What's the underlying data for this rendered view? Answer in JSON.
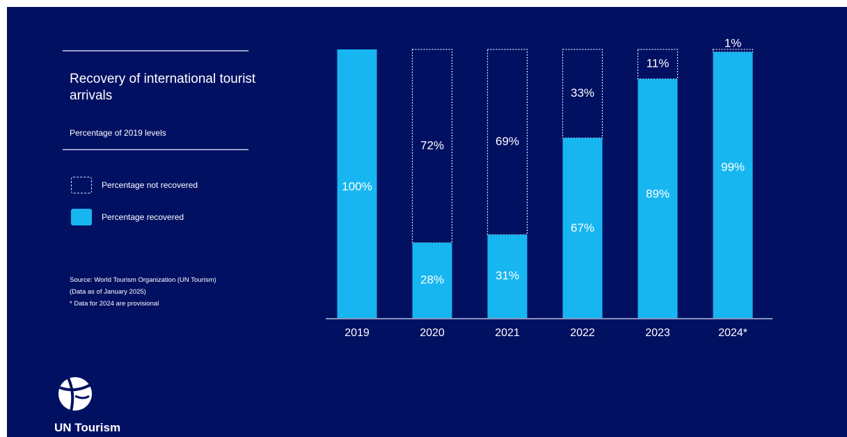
{
  "title": "Recovery of international tourist arrivals",
  "subtitle": "Percentage of 2019 levels",
  "legend": {
    "not_recovered": "Percentage not recovered",
    "recovered": "Percentage recovered"
  },
  "source": {
    "line1": "Source: World Tourism Organization (UN Tourism)",
    "line2": "(Data as of January 2025)",
    "line3": "* Data for 2024 are provisional"
  },
  "brand": {
    "name": "UN Tourism"
  },
  "colors": {
    "background": "#021062",
    "recovered": "#17b6f0",
    "not_recovered_outline": "#e4e8ff",
    "text": "#ffffff"
  },
  "chart_data": {
    "type": "bar",
    "stacked": true,
    "categories": [
      "2019",
      "2020",
      "2021",
      "2022",
      "2023",
      "2024*"
    ],
    "series": [
      {
        "name": "Percentage recovered",
        "values": [
          100,
          28,
          31,
          67,
          89,
          99
        ],
        "labels": [
          "100%",
          "28%",
          "31%",
          "67%",
          "89%",
          "99%"
        ]
      },
      {
        "name": "Percentage not recovered",
        "values": [
          0,
          72,
          69,
          33,
          11,
          1
        ],
        "labels": [
          "",
          "72%",
          "69%",
          "33%",
          "11%",
          "1%"
        ]
      }
    ],
    "ylim": [
      0,
      100
    ],
    "grid": false,
    "legend_position": "left"
  }
}
